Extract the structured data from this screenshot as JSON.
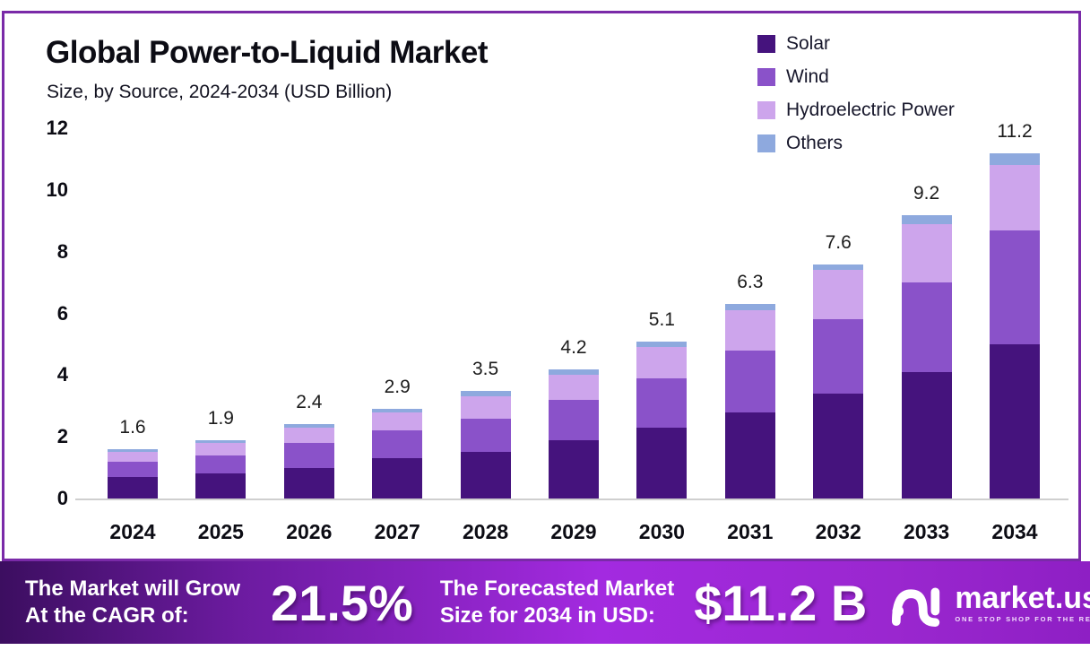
{
  "title": "Global Power-to-Liquid Market",
  "subtitle": "Size, by Source, 2024-2034 (USD Billion)",
  "chart_data": {
    "type": "bar",
    "stacked": true,
    "title": "Global Power-to-Liquid Market Size, by Source, 2024-2034 (USD Billion)",
    "categories": [
      "2024",
      "2025",
      "2026",
      "2027",
      "2028",
      "2029",
      "2030",
      "2031",
      "2032",
      "2033",
      "2034"
    ],
    "series": [
      {
        "name": "Solar",
        "color": "#45137d",
        "values": [
          0.7,
          0.8,
          1.0,
          1.3,
          1.5,
          1.9,
          2.3,
          2.8,
          3.4,
          4.1,
          5.0
        ]
      },
      {
        "name": "Wind",
        "color": "#8a52c9",
        "values": [
          0.5,
          0.6,
          0.8,
          0.9,
          1.1,
          1.3,
          1.6,
          2.0,
          2.4,
          2.9,
          3.7
        ]
      },
      {
        "name": "Hydroelectric Power",
        "color": "#cda5ec",
        "values": [
          0.3,
          0.4,
          0.5,
          0.6,
          0.7,
          0.8,
          1.0,
          1.3,
          1.6,
          1.9,
          2.1
        ]
      },
      {
        "name": "Others",
        "color": "#8ea9de",
        "values": [
          0.1,
          0.1,
          0.1,
          0.1,
          0.2,
          0.2,
          0.2,
          0.2,
          0.2,
          0.3,
          0.4
        ]
      }
    ],
    "totals": [
      1.6,
      1.9,
      2.4,
      2.9,
      3.5,
      4.2,
      5.1,
      6.3,
      7.6,
      9.2,
      11.2
    ],
    "ylim": [
      0,
      12
    ],
    "yticks": [
      0,
      2,
      4,
      6,
      8,
      10,
      12
    ],
    "grid": false,
    "legend_position": "top-right"
  },
  "banner": {
    "cagr_label_line1": "The Market will Grow",
    "cagr_label_line2": "At the CAGR of:",
    "cagr_value": "21.5%",
    "forecast_label_line1": "The Forecasted Market",
    "forecast_label_line2": "Size for 2034 in USD:",
    "forecast_value": "$11.2 B",
    "logo_text": "market.us",
    "logo_tagline": "ONE STOP SHOP FOR THE REPORTS"
  },
  "colors": {
    "frame_border": "#7a2aa8",
    "axis_line": "#cfcfcf",
    "banner_gradient_left": "#3c0e60",
    "banner_gradient_mid": "#a32ae0",
    "banner_gradient_right": "#8e1fc4"
  }
}
